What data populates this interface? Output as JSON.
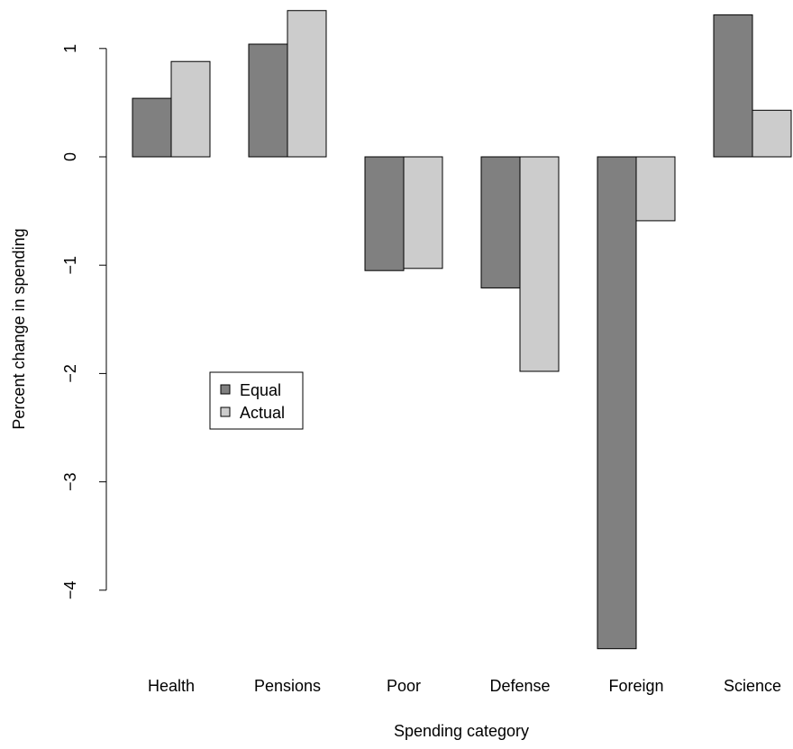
{
  "chart_data": {
    "type": "bar",
    "title": "",
    "xlabel": "Spending category",
    "ylabel": "Percent change in spending",
    "categories": [
      "Health",
      "Pensions",
      "Poor",
      "Defense",
      "Foreign",
      "Science"
    ],
    "series": [
      {
        "name": "Equal",
        "color": "#808080",
        "values": [
          0.54,
          1.04,
          -1.05,
          -1.21,
          -4.54,
          1.31
        ]
      },
      {
        "name": "Actual",
        "color": "#cccccc",
        "values": [
          0.88,
          1.35,
          -1.03,
          -1.98,
          -0.59,
          0.43
        ]
      }
    ],
    "yticks": [
      1,
      0,
      -1,
      -2,
      -3,
      -4
    ],
    "ylim": [
      -4.54,
      1.35
    ],
    "grid": false,
    "legend_position": "center-left"
  }
}
